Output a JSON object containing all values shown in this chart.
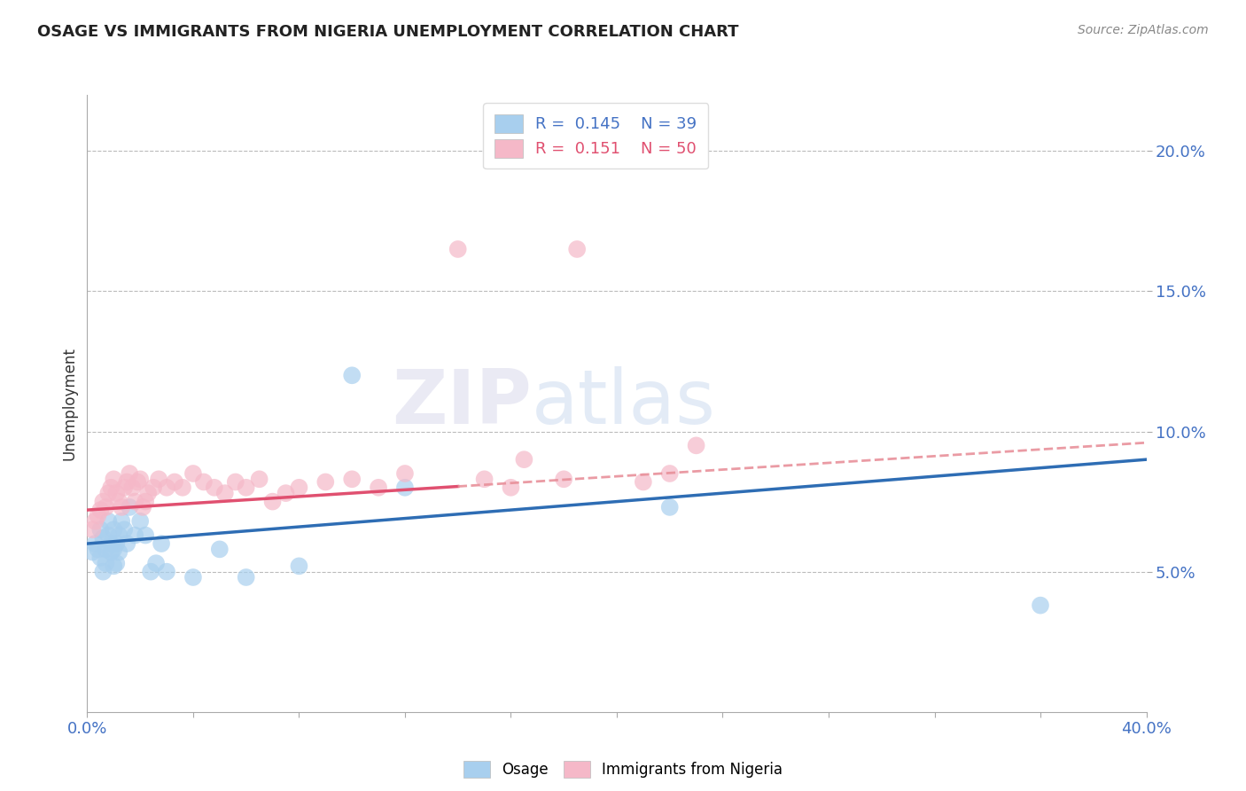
{
  "title": "OSAGE VS IMMIGRANTS FROM NIGERIA UNEMPLOYMENT CORRELATION CHART",
  "source": "Source: ZipAtlas.com",
  "ylabel": "Unemployment",
  "xmin": 0.0,
  "xmax": 0.4,
  "ymin": 0.0,
  "ymax": 0.22,
  "yticks": [
    0.05,
    0.1,
    0.15,
    0.2
  ],
  "ytick_labels": [
    "5.0%",
    "10.0%",
    "15.0%",
    "20.0%"
  ],
  "xticks": [
    0.0,
    0.04,
    0.08,
    0.12,
    0.16,
    0.2,
    0.24,
    0.28,
    0.32,
    0.36,
    0.4
  ],
  "blue_color": "#A8CFEE",
  "pink_color": "#F5B8C8",
  "blue_line_color": "#2E6DB4",
  "pink_line_color": "#E05070",
  "pink_dash_color": "#E8909A",
  "watermark_zip": "ZIP",
  "watermark_atlas": "atlas",
  "osage_x": [
    0.002,
    0.003,
    0.004,
    0.005,
    0.005,
    0.006,
    0.006,
    0.007,
    0.007,
    0.008,
    0.008,
    0.009,
    0.009,
    0.01,
    0.01,
    0.01,
    0.011,
    0.011,
    0.012,
    0.012,
    0.013,
    0.014,
    0.015,
    0.016,
    0.018,
    0.02,
    0.022,
    0.024,
    0.026,
    0.028,
    0.03,
    0.04,
    0.05,
    0.06,
    0.08,
    0.1,
    0.12,
    0.22,
    0.36
  ],
  "osage_y": [
    0.057,
    0.06,
    0.058,
    0.065,
    0.055,
    0.062,
    0.05,
    0.058,
    0.053,
    0.063,
    0.068,
    0.057,
    0.06,
    0.065,
    0.058,
    0.052,
    0.06,
    0.053,
    0.057,
    0.063,
    0.068,
    0.065,
    0.06,
    0.073,
    0.063,
    0.068,
    0.063,
    0.05,
    0.053,
    0.06,
    0.05,
    0.048,
    0.058,
    0.048,
    0.052,
    0.12,
    0.08,
    0.073,
    0.038
  ],
  "nigeria_x": [
    0.002,
    0.003,
    0.004,
    0.005,
    0.006,
    0.007,
    0.008,
    0.009,
    0.01,
    0.011,
    0.012,
    0.013,
    0.014,
    0.015,
    0.016,
    0.017,
    0.018,
    0.019,
    0.02,
    0.021,
    0.022,
    0.023,
    0.025,
    0.027,
    0.03,
    0.033,
    0.036,
    0.04,
    0.044,
    0.048,
    0.052,
    0.056,
    0.06,
    0.065,
    0.07,
    0.075,
    0.08,
    0.09,
    0.1,
    0.11,
    0.12,
    0.14,
    0.15,
    0.16,
    0.165,
    0.18,
    0.185,
    0.21,
    0.22,
    0.23
  ],
  "nigeria_y": [
    0.065,
    0.068,
    0.07,
    0.072,
    0.075,
    0.073,
    0.078,
    0.08,
    0.083,
    0.078,
    0.075,
    0.073,
    0.08,
    0.082,
    0.085,
    0.08,
    0.075,
    0.082,
    0.083,
    0.073,
    0.075,
    0.078,
    0.08,
    0.083,
    0.08,
    0.082,
    0.08,
    0.085,
    0.082,
    0.08,
    0.078,
    0.082,
    0.08,
    0.083,
    0.075,
    0.078,
    0.08,
    0.082,
    0.083,
    0.08,
    0.085,
    0.165,
    0.083,
    0.08,
    0.09,
    0.083,
    0.165,
    0.082,
    0.085,
    0.095
  ],
  "blue_intercept": 0.06,
  "blue_slope": 0.075,
  "pink_intercept": 0.072,
  "pink_slope": 0.06
}
